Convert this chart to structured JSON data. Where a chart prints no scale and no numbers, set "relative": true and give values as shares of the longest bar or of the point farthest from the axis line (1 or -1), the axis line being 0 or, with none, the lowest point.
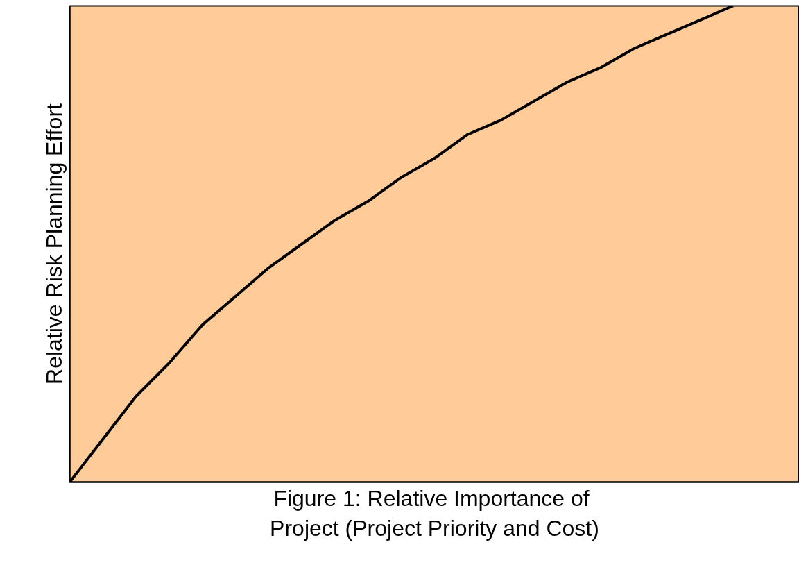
{
  "chart_data": {
    "type": "line",
    "relative": true,
    "xlabel": "Figure 1:  Relative Importance of\nProject (Project Priority and Cost)",
    "ylabel": "Relative Risk Planning Effort",
    "categories": [
      null,
      null,
      null,
      null,
      null,
      null,
      null,
      null,
      null,
      null,
      null,
      null,
      null,
      null,
      null,
      null,
      null,
      null,
      null,
      null,
      null,
      null,
      null
    ],
    "series": [
      {
        "color": "#000000",
        "values": [
          0,
          0.09,
          0.18,
          0.25,
          0.33,
          0.39,
          0.45,
          0.5,
          0.55,
          0.59,
          0.64,
          0.68,
          0.73,
          0.76,
          0.8,
          0.84,
          0.87,
          0.91,
          0.94,
          0.97,
          1.0,
          null,
          null
        ]
      }
    ],
    "marker": "none",
    "line_style": "solid"
  }
}
